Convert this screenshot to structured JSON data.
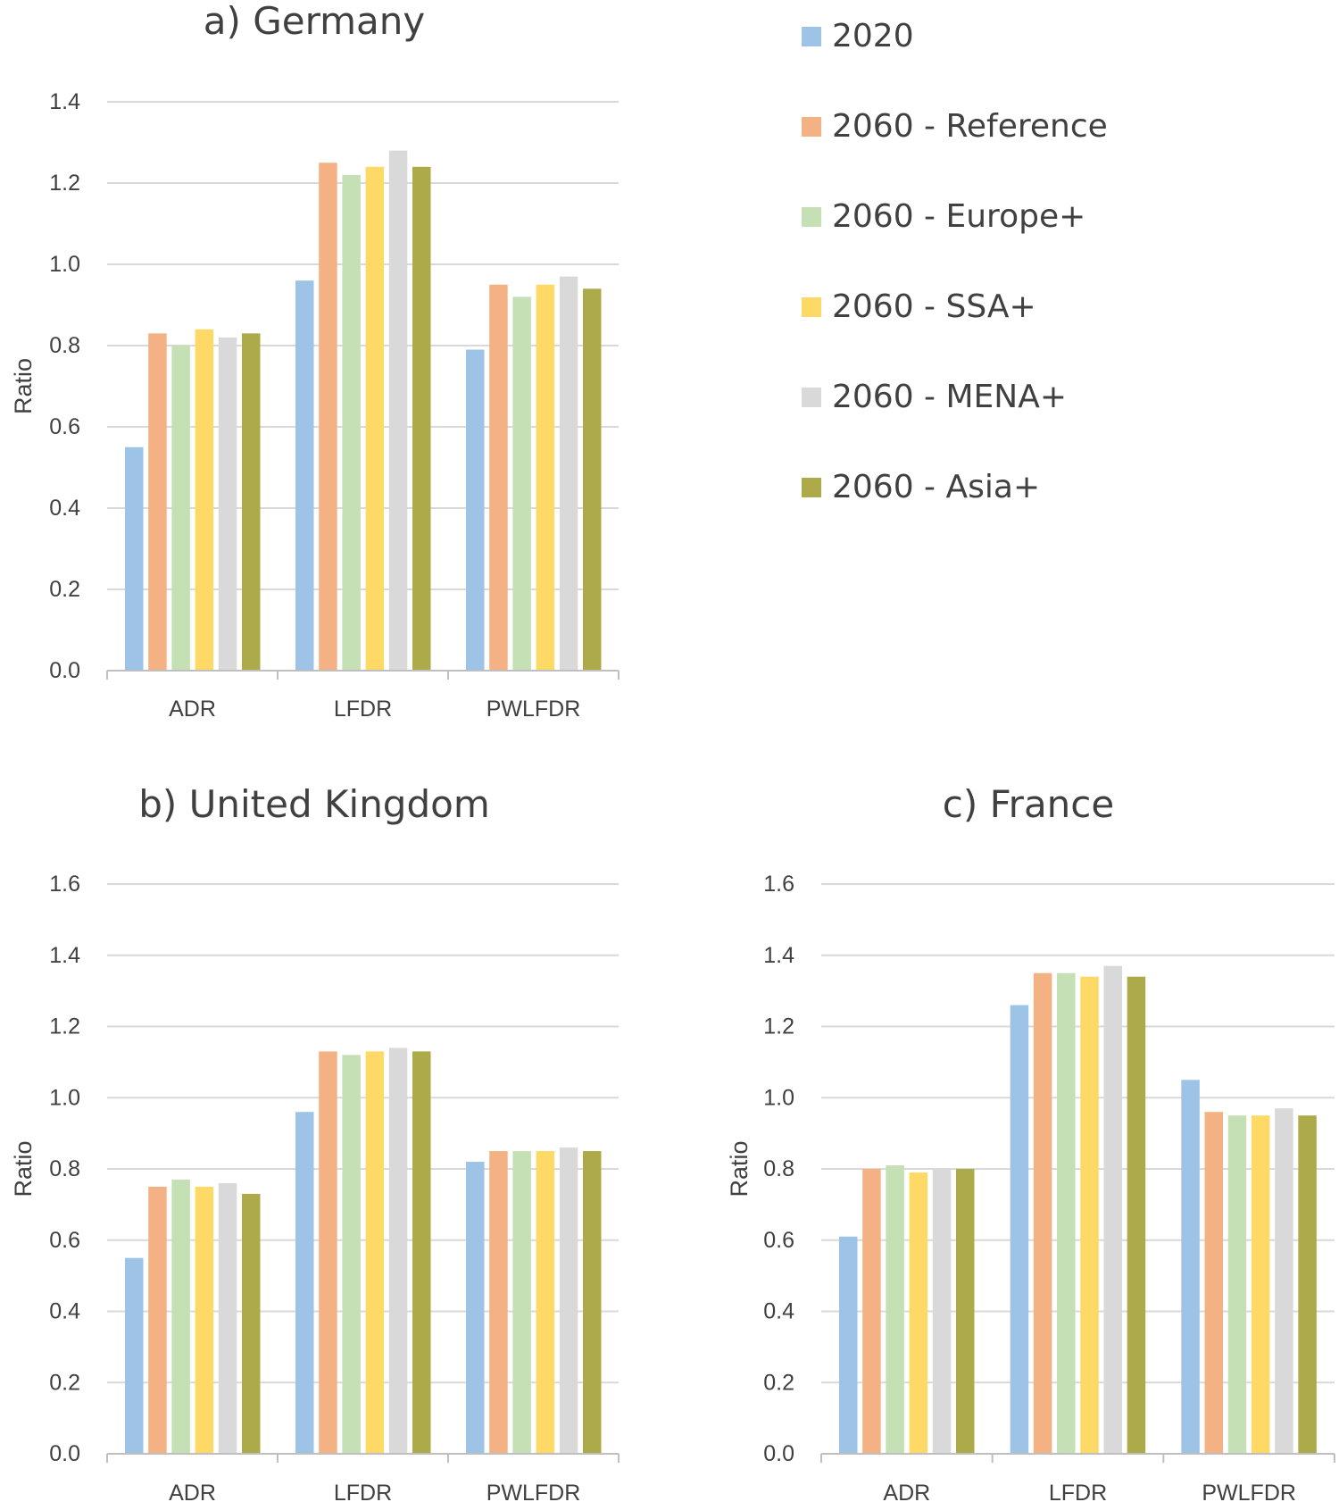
{
  "legend": {
    "items": [
      {
        "label": "2020",
        "color": "#9DC3E6"
      },
      {
        "label": "2060 - Reference",
        "color": "#F4B183"
      },
      {
        "label": "2060 - Europe+",
        "color": "#C5E0B4"
      },
      {
        "label": "2060 - SSA+",
        "color": "#FFD966"
      },
      {
        "label": "2060 - MENA+",
        "color": "#D9D9D9"
      },
      {
        "label": "2060 - Asia+",
        "color": "#ADAA4A"
      }
    ]
  },
  "chart_data": [
    {
      "type": "bar",
      "title": "a) Germany",
      "ylabel": "Ratio",
      "xlabel": "",
      "ylim": [
        0,
        1.4
      ],
      "yticks": [
        "0.0",
        "0.2",
        "0.4",
        "0.6",
        "0.8",
        "1.0",
        "1.2",
        "1.4"
      ],
      "categories": [
        "ADR",
        "LFDR",
        "PWLFDR"
      ],
      "grid": true,
      "series": [
        {
          "name": "2020",
          "values": [
            0.55,
            0.96,
            0.79
          ]
        },
        {
          "name": "2060 - Reference",
          "values": [
            0.83,
            1.25,
            0.95
          ]
        },
        {
          "name": "2060 - Europe+",
          "values": [
            0.8,
            1.22,
            0.92
          ]
        },
        {
          "name": "2060 - SSA+",
          "values": [
            0.84,
            1.24,
            0.95
          ]
        },
        {
          "name": "2060 - MENA+",
          "values": [
            0.82,
            1.28,
            0.97
          ]
        },
        {
          "name": "2060 - Asia+",
          "values": [
            0.83,
            1.24,
            0.94
          ]
        }
      ]
    },
    {
      "type": "bar",
      "title": "b) United Kingdom",
      "ylabel": "Ratio",
      "xlabel": "",
      "ylim": [
        0,
        1.6
      ],
      "yticks": [
        "0.0",
        "0.2",
        "0.4",
        "0.6",
        "0.8",
        "1.0",
        "1.2",
        "1.4",
        "1.6"
      ],
      "categories": [
        "ADR",
        "LFDR",
        "PWLFDR"
      ],
      "grid": true,
      "series": [
        {
          "name": "2020",
          "values": [
            0.55,
            0.96,
            0.82
          ]
        },
        {
          "name": "2060 - Reference",
          "values": [
            0.75,
            1.13,
            0.85
          ]
        },
        {
          "name": "2060 - Europe+",
          "values": [
            0.77,
            1.12,
            0.85
          ]
        },
        {
          "name": "2060 - SSA+",
          "values": [
            0.75,
            1.13,
            0.85
          ]
        },
        {
          "name": "2060 - MENA+",
          "values": [
            0.76,
            1.14,
            0.86
          ]
        },
        {
          "name": "2060 - Asia+",
          "values": [
            0.73,
            1.13,
            0.85
          ]
        }
      ]
    },
    {
      "type": "bar",
      "title": "c) France",
      "ylabel": "Ratio",
      "xlabel": "",
      "ylim": [
        0,
        1.6
      ],
      "yticks": [
        "0.0",
        "0.2",
        "0.4",
        "0.6",
        "0.8",
        "1.0",
        "1.2",
        "1.4",
        "1.6"
      ],
      "categories": [
        "ADR",
        "LFDR",
        "PWLFDR"
      ],
      "grid": true,
      "series": [
        {
          "name": "2020",
          "values": [
            0.61,
            1.26,
            1.05
          ]
        },
        {
          "name": "2060 - Reference",
          "values": [
            0.8,
            1.35,
            0.96
          ]
        },
        {
          "name": "2060 - Europe+",
          "values": [
            0.81,
            1.35,
            0.95
          ]
        },
        {
          "name": "2060 - SSA+",
          "values": [
            0.79,
            1.34,
            0.95
          ]
        },
        {
          "name": "2060 - MENA+",
          "values": [
            0.8,
            1.37,
            0.97
          ]
        },
        {
          "name": "2060 - Asia+",
          "values": [
            0.8,
            1.34,
            0.95
          ]
        }
      ]
    }
  ]
}
